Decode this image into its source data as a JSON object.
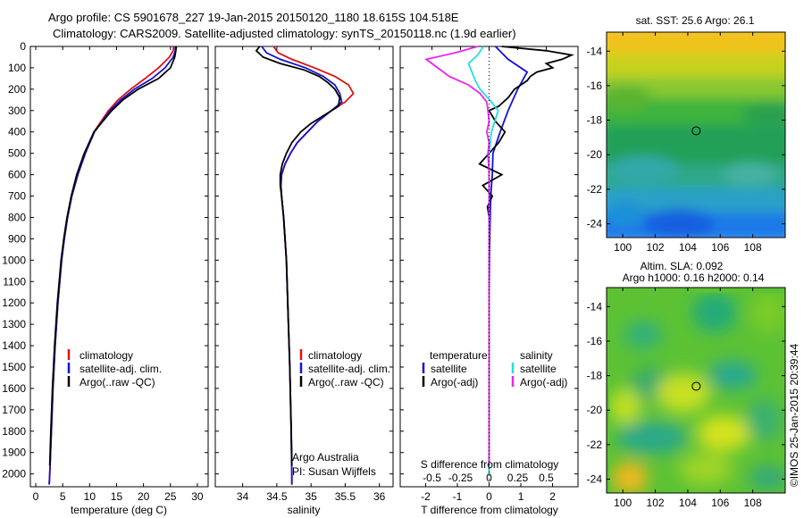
{
  "header": {
    "line1": "Argo profile: CS 5901678_227 19-Jan-2015 20150120_1180 18.615S 104.518E",
    "line2": "Climatology: CARS2009. Satellite-adjusted climatology: synTS_20150118.nc (1.9d earlier)"
  },
  "colors": {
    "climatology": "#dd1111",
    "satellite": "#1111dd",
    "argo": "#000000",
    "sal_satellite": "#22dddd",
    "sal_argo": "#ee22ee"
  },
  "depth_axis": {
    "ticks": [
      0,
      100,
      200,
      300,
      400,
      500,
      600,
      700,
      800,
      900,
      1000,
      1100,
      1200,
      1300,
      1400,
      1500,
      1600,
      1700,
      1800,
      1900,
      2000
    ],
    "range": [
      0,
      2060
    ]
  },
  "chart_data": [
    {
      "id": "temperature",
      "type": "line",
      "xlabel": "temperature (deg C)",
      "xlim": [
        -1,
        32
      ],
      "xticks": [
        0,
        5,
        10,
        15,
        20,
        25,
        30
      ],
      "legend": [
        "climatology",
        "satellite-adj. clim.",
        "Argo(..raw -QC)"
      ],
      "series": [
        {
          "name": "climatology",
          "color": "#dd1111",
          "depth": [
            0,
            20,
            50,
            100,
            150,
            200,
            250,
            300,
            400,
            500,
            600,
            700,
            800,
            900,
            1000,
            1200,
            1400,
            1600,
            1800,
            2000,
            2050
          ],
          "values": [
            25.6,
            25.5,
            24.8,
            22.8,
            20.3,
            17.6,
            15.3,
            13.5,
            10.8,
            9.2,
            7.8,
            6.7,
            5.9,
            5.3,
            4.8,
            4.1,
            3.6,
            3.2,
            2.9,
            2.6,
            2.5
          ]
        },
        {
          "name": "satellite-adj. clim.",
          "color": "#1111dd",
          "depth": [
            0,
            20,
            50,
            100,
            150,
            200,
            250,
            300,
            400,
            500,
            600,
            700,
            800,
            900,
            1000,
            1200,
            1400,
            1600,
            1800,
            2000,
            2050
          ],
          "values": [
            25.9,
            25.9,
            25.5,
            24.0,
            21.6,
            18.3,
            15.8,
            13.8,
            10.9,
            9.2,
            7.8,
            6.7,
            5.9,
            5.3,
            4.8,
            4.1,
            3.6,
            3.2,
            2.9,
            2.6,
            2.5
          ]
        },
        {
          "name": "Argo(..raw -QC)",
          "color": "#000000",
          "depth": [
            0,
            20,
            50,
            100,
            150,
            200,
            250,
            300,
            400,
            500,
            600,
            700,
            800,
            900,
            1000,
            1200,
            1400,
            1600,
            1800,
            1960
          ],
          "values": [
            26.1,
            26.0,
            25.8,
            25.0,
            22.8,
            19.0,
            16.2,
            14.1,
            10.8,
            9.0,
            7.6,
            6.6,
            5.8,
            5.2,
            4.7,
            4.0,
            3.5,
            3.1,
            2.8,
            2.6
          ]
        }
      ]
    },
    {
      "id": "salinity",
      "type": "line",
      "xlabel": "salinity",
      "xlim": [
        33.6,
        36.2
      ],
      "xticks": [
        34,
        34.5,
        35,
        35.5,
        36
      ],
      "legend": [
        "climatology",
        "satellite-adj. clim.",
        "Argo(..raw -QC)"
      ],
      "series": [
        {
          "name": "climatology",
          "color": "#dd1111",
          "depth": [
            0,
            30,
            60,
            100,
            140,
            180,
            220,
            260,
            300,
            350,
            400,
            450,
            500,
            550,
            600,
            650,
            700,
            800,
            1000,
            1200,
            1500,
            1800,
            2000,
            2050
          ],
          "values": [
            34.45,
            34.52,
            34.72,
            35.05,
            35.35,
            35.55,
            35.62,
            35.5,
            35.3,
            35.1,
            34.95,
            34.8,
            34.7,
            34.62,
            34.57,
            34.56,
            34.57,
            34.6,
            34.64,
            34.66,
            34.69,
            34.71,
            34.72,
            34.72
          ]
        },
        {
          "name": "satellite-adj. clim.",
          "color": "#1111dd",
          "depth": [
            0,
            30,
            60,
            100,
            140,
            180,
            220,
            260,
            300,
            350,
            400,
            450,
            500,
            550,
            600,
            650,
            700,
            800,
            1000,
            1200,
            1500,
            1800,
            2000,
            2050
          ],
          "values": [
            34.28,
            34.35,
            34.55,
            34.92,
            35.18,
            35.35,
            35.42,
            35.45,
            35.3,
            35.1,
            34.95,
            34.8,
            34.7,
            34.62,
            34.57,
            34.56,
            34.57,
            34.6,
            34.64,
            34.66,
            34.69,
            34.71,
            34.72,
            34.72
          ]
        },
        {
          "name": "Argo(..raw -QC)",
          "color": "#000000",
          "depth": [
            0,
            20,
            50,
            80,
            110,
            140,
            170,
            200,
            240,
            280,
            320,
            360,
            400,
            450,
            500,
            550,
            600,
            650,
            700,
            800,
            1000,
            1200,
            1500,
            1800,
            1960
          ],
          "values": [
            34.25,
            34.2,
            34.3,
            34.55,
            34.9,
            35.12,
            35.25,
            35.35,
            35.42,
            35.4,
            35.2,
            35.0,
            34.85,
            34.72,
            34.64,
            34.58,
            34.55,
            34.55,
            34.57,
            34.6,
            34.64,
            34.66,
            34.69,
            34.71,
            34.72
          ]
        }
      ],
      "notes": {
        "line1": "Argo Australia",
        "line2": "PI: Susan Wijffels"
      }
    },
    {
      "id": "differences",
      "type": "line",
      "xlabel_top": "S difference from climatology",
      "xlabel_bottom": "T difference from climatology",
      "xlim": [
        -2.8,
        2.8
      ],
      "t_ticks": [
        "-2",
        "-1",
        "0",
        "1",
        "2"
      ],
      "s_ticks": [
        "-0.5",
        "-0.25",
        "0",
        "0.25",
        "0.5"
      ],
      "t_tick_values": [
        -2,
        -1,
        0,
        1,
        2
      ],
      "s_tick_values": [
        -0.5,
        -0.25,
        0,
        0.25,
        0.5
      ],
      "legend": {
        "temperature": "temperature",
        "salinity": "salinity",
        "satellite": "satellite",
        "argo": "Argo(-adj)"
      },
      "series": [
        {
          "name": "temperature satellite",
          "color": "#1111dd",
          "depth": [
            0,
            60,
            120,
            200,
            300,
            400,
            500,
            600,
            700,
            900,
            1200,
            1500,
            2000
          ],
          "t_diff": [
            0.2,
            0.6,
            1.2,
            0.9,
            0.6,
            0.35,
            0.12,
            0.1,
            0.05,
            0.02,
            0.0,
            0.0,
            0.0
          ]
        },
        {
          "name": "temperature Argo",
          "color": "#000000",
          "depth": [
            0,
            20,
            40,
            60,
            80,
            100,
            120,
            140,
            160,
            180,
            200,
            240,
            280,
            300,
            350,
            400,
            450,
            500,
            550,
            600,
            650,
            700,
            750,
            800,
            900,
            1000,
            1200,
            1500,
            1800,
            1960
          ],
          "t_diff": [
            0.4,
            1.8,
            2.6,
            2.3,
            1.8,
            2.0,
            1.5,
            1.3,
            1.2,
            1.0,
            0.8,
            0.6,
            0.3,
            0.0,
            0.2,
            0.5,
            0.3,
            0.0,
            -0.3,
            0.4,
            -0.2,
            0.1,
            -0.05,
            0.0,
            0.02,
            0.0,
            0.0,
            0.0,
            0.0,
            0.0
          ]
        },
        {
          "name": "salinity satellite",
          "color": "#22dddd",
          "depth": [
            0,
            40,
            80,
            120,
            160,
            200,
            260,
            300,
            350,
            400,
            450,
            500,
            600,
            800,
            1000,
            1400,
            1800,
            2000
          ],
          "s_diff": [
            -0.05,
            -0.1,
            -0.18,
            -0.15,
            -0.12,
            -0.08,
            0.02,
            0.08,
            0.05,
            0.02,
            0.01,
            0.0,
            0.0,
            0.0,
            0.0,
            0.0,
            0.0,
            0.0
          ]
        },
        {
          "name": "salinity Argo",
          "color": "#ee22ee",
          "depth": [
            0,
            30,
            60,
            100,
            140,
            180,
            220,
            260,
            300,
            350,
            400,
            450,
            500,
            600,
            800,
            1000,
            1400,
            1800,
            1960
          ],
          "s_diff": [
            -0.1,
            -0.3,
            -0.55,
            -0.45,
            -0.35,
            -0.18,
            -0.08,
            -0.02,
            -0.01,
            0.0,
            -0.02,
            0.0,
            -0.01,
            0.0,
            0.0,
            0.0,
            0.0,
            0.0,
            0.0
          ]
        }
      ]
    },
    {
      "id": "sst_map",
      "type": "heatmap",
      "title": "sat. SST: 25.6 Argo: 26.1",
      "xticks": [
        "100",
        "102",
        "104",
        "106",
        "108"
      ],
      "yticks": [
        "-14",
        "-16",
        "-18",
        "-20",
        "-22",
        "-24"
      ],
      "xlim": [
        99,
        110
      ],
      "ylim": [
        -24.8,
        -12.9
      ],
      "marker": {
        "lon": 104.518,
        "lat": -18.615
      }
    },
    {
      "id": "sla_map",
      "type": "heatmap",
      "title_line1": "Altim. SLA: 0.092",
      "title_line2": "Argo h1000: 0.16 h2000: 0.14",
      "xticks": [
        "100",
        "102",
        "104",
        "106",
        "108"
      ],
      "yticks": [
        "-14",
        "-16",
        "-18",
        "-20",
        "-22",
        "-24"
      ],
      "xlim": [
        99,
        110
      ],
      "ylim": [
        -24.8,
        -12.9
      ],
      "marker": {
        "lon": 104.518,
        "lat": -18.615
      }
    }
  ],
  "credit": "©IMOS 25-Jan-2015 20:39:44"
}
